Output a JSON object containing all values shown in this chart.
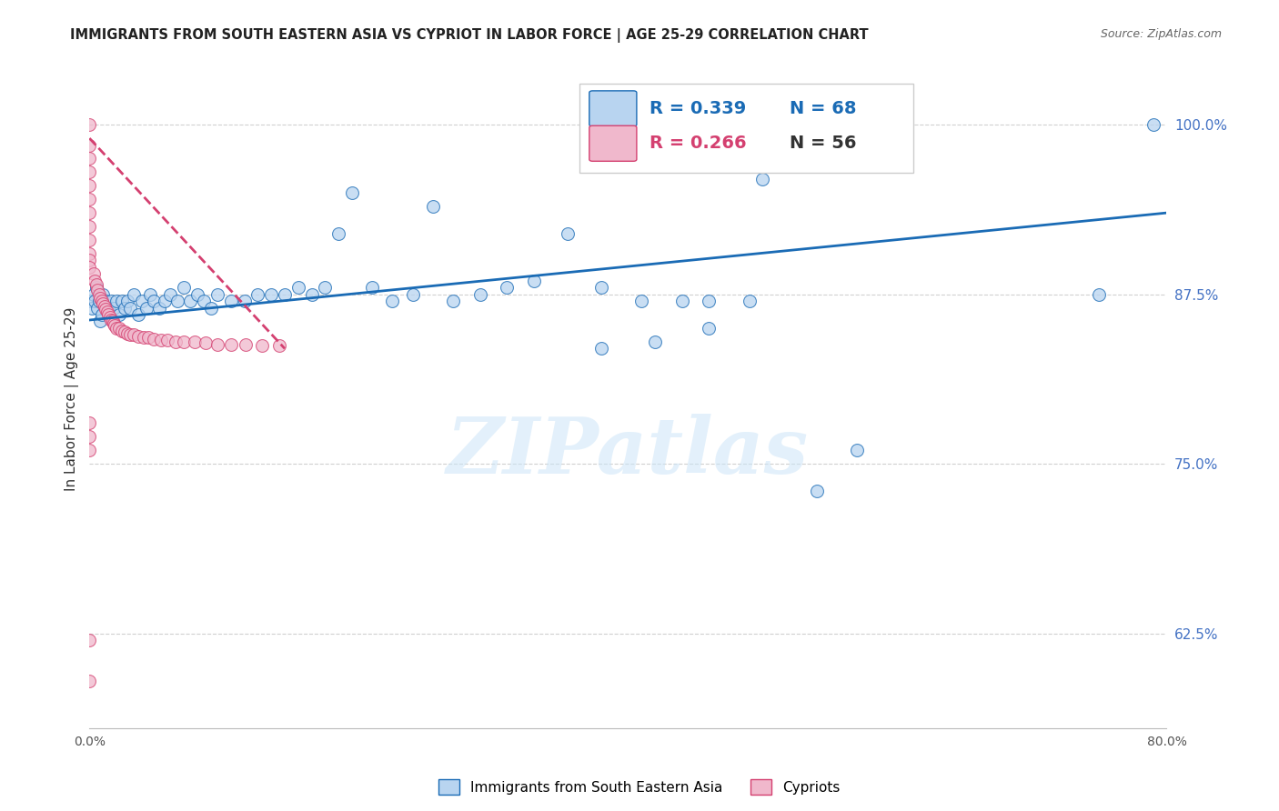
{
  "title": "IMMIGRANTS FROM SOUTH EASTERN ASIA VS CYPRIOT IN LABOR FORCE | AGE 25-29 CORRELATION CHART",
  "source": "Source: ZipAtlas.com",
  "ylabel": "In Labor Force | Age 25-29",
  "xlim": [
    0.0,
    0.8
  ],
  "ylim": [
    0.555,
    1.04
  ],
  "xticks": [
    0.0,
    0.1,
    0.2,
    0.3,
    0.4,
    0.5,
    0.6,
    0.7,
    0.8
  ],
  "xticklabels": [
    "0.0%",
    "",
    "",
    "",
    "",
    "",
    "",
    "",
    "80.0%"
  ],
  "yticks_right": [
    0.625,
    0.75,
    0.875,
    1.0
  ],
  "yticklabels_right": [
    "62.5%",
    "75.0%",
    "87.5%",
    "100.0%"
  ],
  "watermark": "ZIPatlas",
  "blue_color": "#b8d4f0",
  "pink_color": "#f0b8cc",
  "blue_line_color": "#1a6bb5",
  "pink_line_color": "#d44070",
  "legend_blue_R": "R = 0.339",
  "legend_blue_N": "N = 68",
  "legend_pink_R": "R = 0.266",
  "legend_pink_N": "N = 56",
  "legend_label_blue": "Immigrants from South Eastern Asia",
  "legend_label_pink": "Cypriots",
  "blue_scatter_x": [
    0.001,
    0.002,
    0.003,
    0.004,
    0.005,
    0.006,
    0.007,
    0.008,
    0.009,
    0.01,
    0.012,
    0.014,
    0.016,
    0.018,
    0.02,
    0.022,
    0.024,
    0.026,
    0.028,
    0.03,
    0.033,
    0.036,
    0.039,
    0.042,
    0.045,
    0.048,
    0.052,
    0.056,
    0.06,
    0.065,
    0.07,
    0.075,
    0.08,
    0.085,
    0.09,
    0.095,
    0.105,
    0.115,
    0.125,
    0.135,
    0.145,
    0.155,
    0.165,
    0.175,
    0.185,
    0.195,
    0.21,
    0.225,
    0.24,
    0.255,
    0.27,
    0.29,
    0.31,
    0.33,
    0.355,
    0.38,
    0.41,
    0.44,
    0.46,
    0.49,
    0.38,
    0.42,
    0.46,
    0.5,
    0.54,
    0.57,
    0.75,
    0.79
  ],
  "blue_scatter_y": [
    0.87,
    0.865,
    0.875,
    0.87,
    0.88,
    0.865,
    0.87,
    0.855,
    0.86,
    0.875,
    0.87,
    0.865,
    0.87,
    0.865,
    0.87,
    0.86,
    0.87,
    0.865,
    0.87,
    0.865,
    0.875,
    0.86,
    0.87,
    0.865,
    0.875,
    0.87,
    0.865,
    0.87,
    0.875,
    0.87,
    0.88,
    0.87,
    0.875,
    0.87,
    0.865,
    0.875,
    0.87,
    0.87,
    0.875,
    0.875,
    0.875,
    0.88,
    0.875,
    0.88,
    0.92,
    0.95,
    0.88,
    0.87,
    0.875,
    0.94,
    0.87,
    0.875,
    0.88,
    0.885,
    0.92,
    0.88,
    0.87,
    0.87,
    0.87,
    0.87,
    0.835,
    0.84,
    0.85,
    0.96,
    0.73,
    0.76,
    0.875,
    1.0
  ],
  "pink_scatter_x": [
    0.0,
    0.0,
    0.0,
    0.0,
    0.0,
    0.0,
    0.0,
    0.0,
    0.0,
    0.0,
    0.0,
    0.0,
    0.003,
    0.004,
    0.005,
    0.006,
    0.007,
    0.008,
    0.009,
    0.01,
    0.011,
    0.012,
    0.013,
    0.014,
    0.015,
    0.016,
    0.017,
    0.018,
    0.019,
    0.02,
    0.022,
    0.024,
    0.026,
    0.028,
    0.03,
    0.033,
    0.036,
    0.04,
    0.044,
    0.048,
    0.053,
    0.058,
    0.064,
    0.07,
    0.078,
    0.086,
    0.095,
    0.105,
    0.116,
    0.128,
    0.141,
    0.0,
    0.0,
    0.0,
    0.0,
    0.0
  ],
  "pink_scatter_y": [
    1.0,
    0.985,
    0.975,
    0.965,
    0.955,
    0.945,
    0.935,
    0.925,
    0.915,
    0.905,
    0.9,
    0.895,
    0.89,
    0.885,
    0.882,
    0.878,
    0.875,
    0.872,
    0.87,
    0.868,
    0.866,
    0.864,
    0.862,
    0.86,
    0.858,
    0.856,
    0.855,
    0.853,
    0.852,
    0.85,
    0.85,
    0.848,
    0.847,
    0.846,
    0.845,
    0.845,
    0.844,
    0.843,
    0.843,
    0.842,
    0.841,
    0.841,
    0.84,
    0.84,
    0.84,
    0.839,
    0.838,
    0.838,
    0.838,
    0.837,
    0.837,
    0.78,
    0.77,
    0.76,
    0.62,
    0.59
  ],
  "blue_trend_x": [
    0.0,
    0.8
  ],
  "blue_trend_y": [
    0.856,
    0.935
  ],
  "pink_trend_x": [
    0.0,
    0.145
  ],
  "pink_trend_y": [
    0.99,
    0.835
  ]
}
